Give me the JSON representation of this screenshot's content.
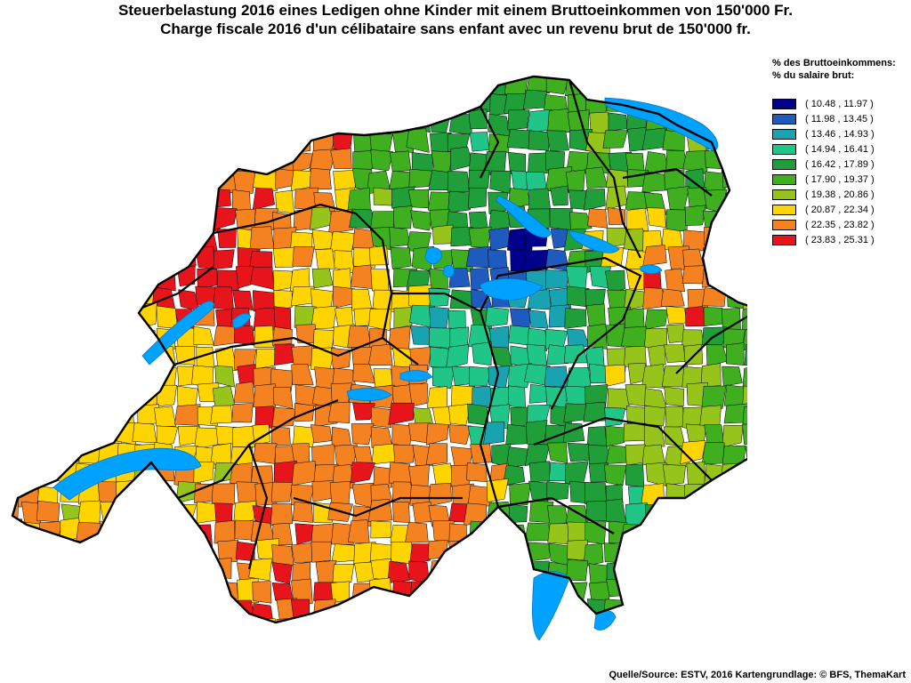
{
  "title": {
    "de": "Steuerbelastung 2016 eines Ledigen ohne Kinder mit einem Bruttoeinkommen von 150'000 Fr.",
    "fr": "Charge fiscale 2016 d'un célibataire sans enfant avec un revenu brut de 150'000 fr."
  },
  "legend": {
    "title_de": "% des Bruttoeinkommens:",
    "title_fr": "% du salaire brut:",
    "classes": [
      {
        "label": "( 10.48 , 11.97 )",
        "color": "#00008b"
      },
      {
        "label": "( 11.98 , 13.45 )",
        "color": "#1f5bbd"
      },
      {
        "label": "( 13.46 , 14.93 )",
        "color": "#19a3b0"
      },
      {
        "label": "( 14.94 , 16.41 )",
        "color": "#1fc687"
      },
      {
        "label": "( 16.42 , 17.89 )",
        "color": "#1f9e3a"
      },
      {
        "label": "( 17.90 , 19.37 )",
        "color": "#3fae1f"
      },
      {
        "label": "( 19.38 , 20.86 )",
        "color": "#97c41b"
      },
      {
        "label": "( 20.87 , 22.34 )",
        "color": "#ffd400"
      },
      {
        "label": "( 22.35 , 23.82 )",
        "color": "#f58220"
      },
      {
        "label": "( 23.83 , 25.31 )",
        "color": "#e8141c"
      }
    ]
  },
  "map": {
    "lake_color": "#00a2ff",
    "border_color": "#000000"
  },
  "source": "Quelle/Source: ESTV, 2016 Kartengrundlage: © BFS, ThemaKart"
}
